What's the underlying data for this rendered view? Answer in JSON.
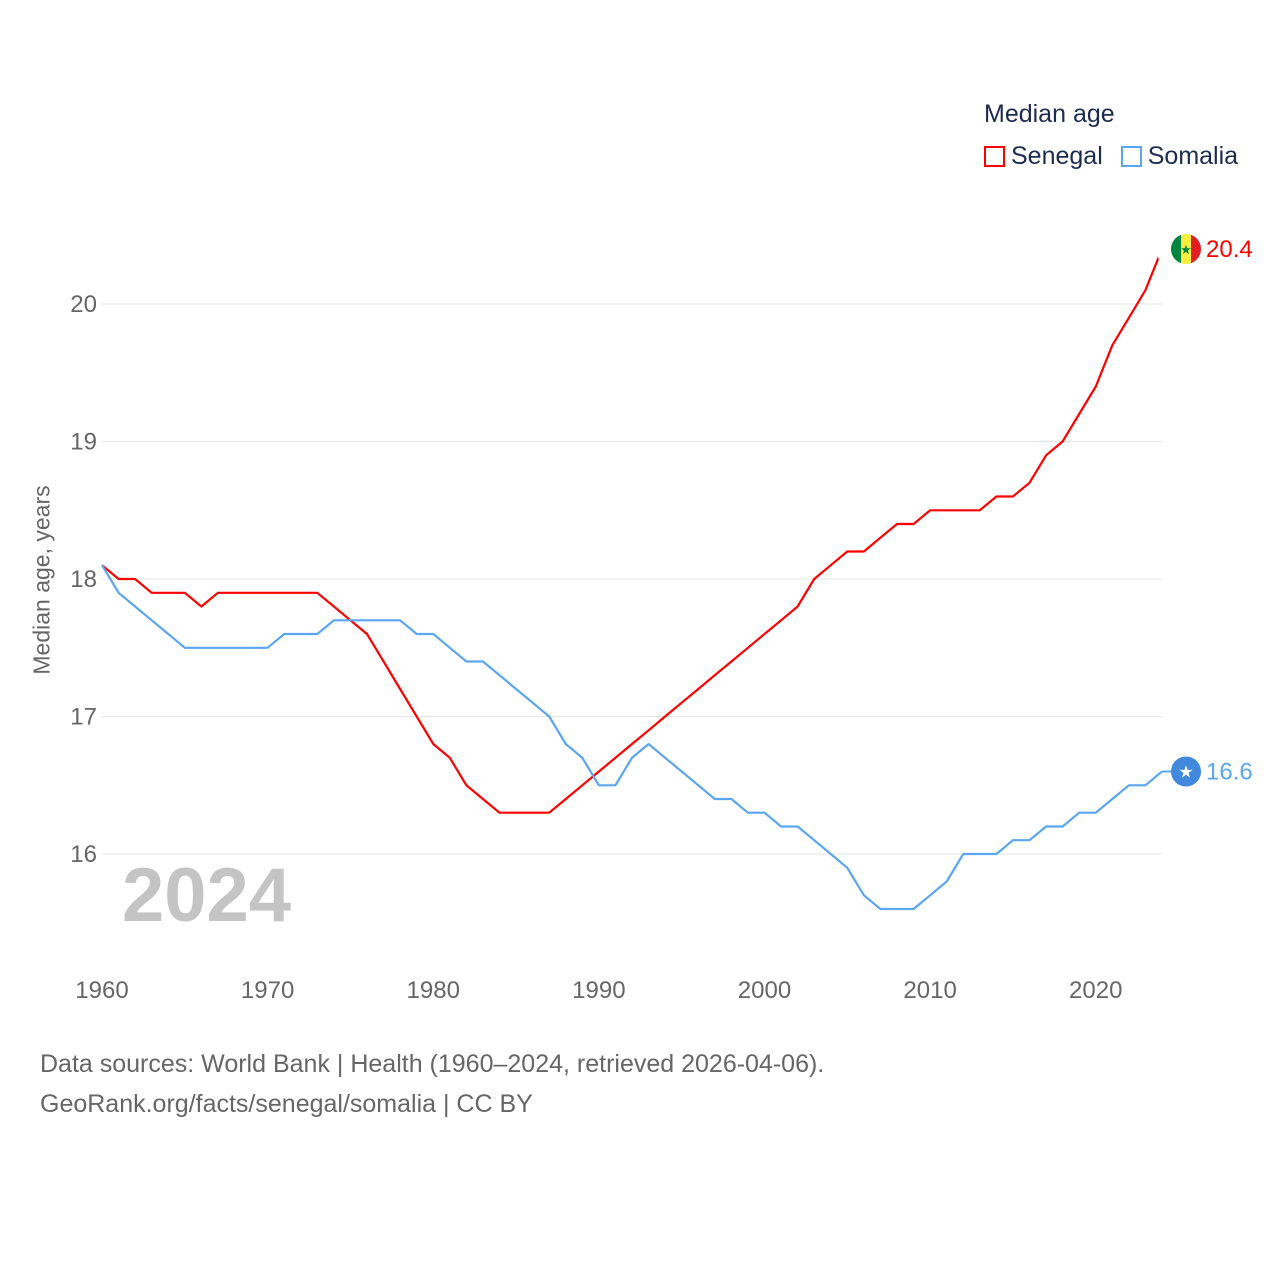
{
  "chart_data": {
    "type": "line",
    "title": "Median age",
    "xlabel": "",
    "ylabel": "Median age, years",
    "xlim": [
      1960,
      2024
    ],
    "ylim": [
      15.4,
      20.6
    ],
    "x_ticks": [
      1960,
      1970,
      1980,
      1990,
      2000,
      2010,
      2020
    ],
    "y_ticks": [
      16,
      17,
      18,
      19,
      20
    ],
    "grid": true,
    "legend_position": "top-right",
    "current_year": "2024",
    "x": [
      1960,
      1961,
      1962,
      1963,
      1964,
      1965,
      1966,
      1967,
      1968,
      1969,
      1970,
      1971,
      1972,
      1973,
      1974,
      1975,
      1976,
      1977,
      1978,
      1979,
      1980,
      1981,
      1982,
      1983,
      1984,
      1985,
      1986,
      1987,
      1988,
      1989,
      1990,
      1991,
      1992,
      1993,
      1994,
      1995,
      1996,
      1997,
      1998,
      1999,
      2000,
      2001,
      2002,
      2003,
      2004,
      2005,
      2006,
      2007,
      2008,
      2009,
      2010,
      2011,
      2012,
      2013,
      2014,
      2015,
      2016,
      2017,
      2018,
      2019,
      2020,
      2021,
      2022,
      2023,
      2024
    ],
    "series": [
      {
        "name": "Senegal",
        "color": "#ff0000",
        "end_label": "20.4",
        "values": [
          18.1,
          18.0,
          18.0,
          17.9,
          17.9,
          17.9,
          17.8,
          17.9,
          17.9,
          17.9,
          17.9,
          17.9,
          17.9,
          17.9,
          17.8,
          17.7,
          17.6,
          17.4,
          17.2,
          17.0,
          16.8,
          16.7,
          16.5,
          16.4,
          16.3,
          16.3,
          16.3,
          16.3,
          16.4,
          16.5,
          16.6,
          16.7,
          16.8,
          16.9,
          17.0,
          17.1,
          17.2,
          17.3,
          17.4,
          17.5,
          17.6,
          17.7,
          17.8,
          18.0,
          18.1,
          18.2,
          18.2,
          18.3,
          18.4,
          18.4,
          18.5,
          18.5,
          18.5,
          18.5,
          18.6,
          18.6,
          18.7,
          18.9,
          19.0,
          19.2,
          19.4,
          19.7,
          19.9,
          20.1,
          20.4
        ]
      },
      {
        "name": "Somalia",
        "color": "#5aa6f0",
        "end_label": "16.6",
        "values": [
          18.1,
          17.9,
          17.8,
          17.7,
          17.6,
          17.5,
          17.5,
          17.5,
          17.5,
          17.5,
          17.5,
          17.6,
          17.6,
          17.6,
          17.7,
          17.7,
          17.7,
          17.7,
          17.7,
          17.6,
          17.6,
          17.5,
          17.4,
          17.4,
          17.3,
          17.2,
          17.1,
          17.0,
          16.8,
          16.7,
          16.5,
          16.5,
          16.7,
          16.8,
          16.7,
          16.6,
          16.5,
          16.4,
          16.4,
          16.3,
          16.3,
          16.2,
          16.2,
          16.1,
          16.0,
          15.9,
          15.7,
          15.6,
          15.6,
          15.6,
          15.7,
          15.8,
          16.0,
          16.0,
          16.0,
          16.1,
          16.1,
          16.2,
          16.2,
          16.3,
          16.3,
          16.4,
          16.5,
          16.5,
          16.6
        ]
      }
    ]
  },
  "footer": {
    "line1": "Data sources: World Bank | Health (1960–2024, retrieved 2026-04-06).",
    "line2": "GeoRank.org/facts/senegal/somalia | CC BY"
  }
}
